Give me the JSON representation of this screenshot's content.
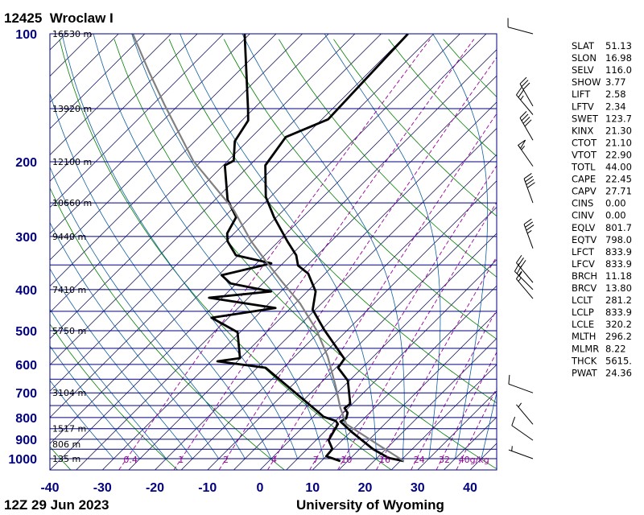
{
  "chart_data": {
    "type": "line",
    "title": "12425  Wroclaw I",
    "date": "12Z 29 Jun 2023",
    "credit": "University of Wyoming",
    "y_axis": {
      "scale": "log",
      "range": [
        100,
        1063
      ],
      "ticks": [
        "100",
        "200",
        "300",
        "400",
        "500",
        "600",
        "700",
        "800",
        "900",
        "1000"
      ]
    },
    "x_axis": {
      "range": [
        -40,
        45
      ],
      "ticks": [
        "-40",
        "-30",
        "-20",
        "-10",
        "0",
        "10",
        "20",
        "30",
        "40"
      ],
      "skew": "45-degree isotherms"
    },
    "isobars": [
      100,
      150,
      200,
      250,
      300,
      350,
      400,
      450,
      500,
      550,
      600,
      650,
      700,
      750,
      800,
      850,
      900,
      950,
      1000
    ],
    "height_labels": [
      {
        "p": 100,
        "text": "16530 m"
      },
      {
        "p": 150,
        "text": "13920 m"
      },
      {
        "p": 200,
        "text": "12100 m"
      },
      {
        "p": 250,
        "text": "10660 m"
      },
      {
        "p": 300,
        "text": "9440 m"
      },
      {
        "p": 400,
        "text": "7410 m"
      },
      {
        "p": 500,
        "text": "5750 m"
      },
      {
        "p": 700,
        "text": "3104 m"
      },
      {
        "p": 850,
        "text": "1517 m"
      },
      {
        "p": 925,
        "text": "806 m"
      },
      {
        "p": 1000,
        "text": "135 m"
      }
    ],
    "mixing_ratio_labels": [
      "0.4",
      "1",
      "2",
      "4",
      "7",
      "10",
      "16",
      "24",
      "32",
      "40g/kg"
    ],
    "mixing_ratio_values": [
      0.4,
      1,
      2,
      4,
      7,
      10,
      16,
      24,
      32,
      40
    ],
    "series": [
      {
        "kind": "temperature",
        "color": "#000000",
        "points": [
          [
            1013,
            25.7
          ],
          [
            996,
            22.2
          ],
          [
            949,
            17.5
          ],
          [
            866,
            10.3
          ],
          [
            818,
            6.1
          ],
          [
            804,
            6.6
          ],
          [
            780,
            5.8
          ],
          [
            760,
            4.3
          ],
          [
            743,
            4.6
          ],
          [
            655,
            -0.3
          ],
          [
            611,
            -4.6
          ],
          [
            582,
            -5.1
          ],
          [
            498,
            -14.4
          ],
          [
            446,
            -20.5
          ],
          [
            404,
            -23.4
          ],
          [
            367,
            -28.2
          ],
          [
            351,
            -31.7
          ],
          [
            332,
            -34.0
          ],
          [
            308,
            -38.3
          ],
          [
            270,
            -45.5
          ],
          [
            242,
            -50.9
          ],
          [
            204,
            -57.0
          ],
          [
            175,
            -58.5
          ],
          [
            159,
            -53.8
          ],
          [
            100,
            -54.9
          ]
        ]
      },
      {
        "kind": "dewpoint",
        "color": "#000000",
        "points": [
          [
            1013,
            13.6
          ],
          [
            987,
            10.0
          ],
          [
            949,
            9.8
          ],
          [
            905,
            7.4
          ],
          [
            829,
            6.1
          ],
          [
            815,
            5.1
          ],
          [
            797,
            2.0
          ],
          [
            770,
            -0.6
          ],
          [
            611,
            -18.4
          ],
          [
            590,
            -28.8
          ],
          [
            580,
            -25.1
          ],
          [
            504,
            -30.5
          ],
          [
            466,
            -38.2
          ],
          [
            442,
            -27.9
          ],
          [
            418,
            -42.5
          ],
          [
            404,
            -31.9
          ],
          [
            387,
            -41.1
          ],
          [
            370,
            -44.4
          ],
          [
            347,
            -37.2
          ],
          [
            332,
            -45.5
          ],
          [
            308,
            -49.7
          ],
          [
            295,
            -51.3
          ],
          [
            270,
            -52.7
          ],
          [
            246,
            -57.6
          ],
          [
            204,
            -64.7
          ],
          [
            199,
            -63.9
          ],
          [
            179,
            -67.4
          ],
          [
            160,
            -68.8
          ],
          [
            150,
            -71.1
          ],
          [
            100,
            -86.0
          ]
        ]
      },
      {
        "kind": "parcel",
        "color": "#808080",
        "points": [
          [
            1013,
            25.7
          ],
          [
            920,
            17.0
          ],
          [
            829,
            7.7
          ],
          [
            760,
            3.5
          ],
          [
            676,
            -1.5
          ],
          [
            575,
            -8.7
          ],
          [
            498,
            -15.9
          ],
          [
            431,
            -24.1
          ],
          [
            383,
            -31.7
          ],
          [
            347,
            -37.9
          ],
          [
            308,
            -45.2
          ],
          [
            259,
            -54.7
          ],
          [
            199,
            -71.6
          ],
          [
            147,
            -87.7
          ],
          [
            123,
            -96.9
          ],
          [
            100,
            -107.3
          ]
        ]
      }
    ],
    "wind_barbs": [
      {
        "p": 100,
        "dir": 285,
        "kt": 10
      },
      {
        "p": 148,
        "dir": 330,
        "kt": 30
      },
      {
        "p": 155,
        "dir": 320,
        "kt": 25
      },
      {
        "p": 178,
        "dir": 330,
        "kt": 40
      },
      {
        "p": 205,
        "dir": 325,
        "kt": 55
      },
      {
        "p": 250,
        "dir": 340,
        "kt": 40
      },
      {
        "p": 320,
        "dir": 340,
        "kt": 35
      },
      {
        "p": 385,
        "dir": 320,
        "kt": 30
      },
      {
        "p": 400,
        "dir": 315,
        "kt": 25
      },
      {
        "p": 420,
        "dir": 320,
        "kt": 15
      },
      {
        "p": 700,
        "dir": 290,
        "kt": 10
      },
      {
        "p": 830,
        "dir": 320,
        "kt": 5
      },
      {
        "p": 905,
        "dir": 305,
        "kt": 10
      },
      {
        "p": 1000,
        "dir": 290,
        "kt": 5
      }
    ],
    "colors": {
      "isobar": "#000080",
      "isotherm": "#000050",
      "dry_adiabat": "#008000",
      "moist_adiabat": "#1060a0",
      "mixing_ratio": "#990099",
      "axis_text": "#000080"
    }
  },
  "indices": [
    {
      "key": "SLAT",
      "value": "51.13"
    },
    {
      "key": "SLON",
      "value": "16.98"
    },
    {
      "key": "SELV",
      "value": "116.0"
    },
    {
      "key": "SHOW",
      "value": "3.77"
    },
    {
      "key": "LIFT",
      "value": "2.58"
    },
    {
      "key": "LFTV",
      "value": "2.34"
    },
    {
      "key": "SWET",
      "value": "123.7"
    },
    {
      "key": "KINX",
      "value": "21.30"
    },
    {
      "key": "CTOT",
      "value": "21.10"
    },
    {
      "key": "VTOT",
      "value": "22.90"
    },
    {
      "key": "TOTL",
      "value": "44.00"
    },
    {
      "key": "CAPE",
      "value": "22.45"
    },
    {
      "key": "CAPV",
      "value": "27.71"
    },
    {
      "key": "CINS",
      "value": "0.00"
    },
    {
      "key": "CINV",
      "value": "0.00"
    },
    {
      "key": "EQLV",
      "value": "801.7"
    },
    {
      "key": "EQTV",
      "value": "798.0"
    },
    {
      "key": "LFCT",
      "value": "833.9"
    },
    {
      "key": "LFCV",
      "value": "833.9"
    },
    {
      "key": "BRCH",
      "value": "11.18"
    },
    {
      "key": "BRCV",
      "value": "13.80"
    },
    {
      "key": "LCLT",
      "value": "281.2"
    },
    {
      "key": "LCLP",
      "value": "833.9"
    },
    {
      "key": "LCLE",
      "value": "320.2"
    },
    {
      "key": "MLTH",
      "value": "296.2"
    },
    {
      "key": "MLMR",
      "value": "8.22"
    },
    {
      "key": "THCK",
      "value": "5615."
    },
    {
      "key": "PWAT",
      "value": "24.36"
    }
  ]
}
